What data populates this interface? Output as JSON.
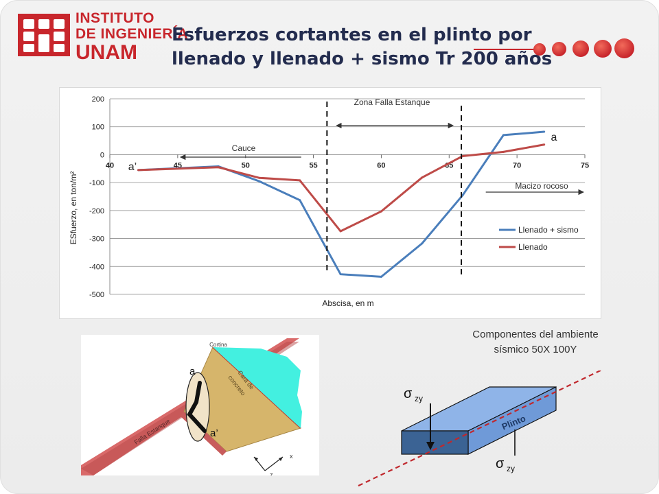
{
  "header": {
    "logo_lines": [
      "INSTITUTO",
      "DE INGENIERÍA",
      "UNAM"
    ],
    "title_line1": "Esfuerzos cortantes en el plinto por",
    "title_line2": "llenado y llenado + sismo Tr 200 años",
    "accent_color": "#c8262c",
    "title_color": "#232c4e"
  },
  "chart_data": {
    "type": "line",
    "title": "",
    "xlabel": "Abscisa, en m",
    "ylabel": "ESfuerzo, en ton/m²",
    "xlim": [
      40,
      75
    ],
    "ylim": [
      -500,
      200
    ],
    "xticks": [
      40,
      45,
      50,
      55,
      60,
      65,
      70,
      75
    ],
    "yticks": [
      200,
      100,
      0,
      -100,
      -200,
      -300,
      -400,
      -500
    ],
    "grid": true,
    "legend_position": "right",
    "series": [
      {
        "name": "Llenado + sismo",
        "color": "#4a7ebb",
        "x": [
          42.1,
          48,
          51,
          54,
          57,
          60,
          63,
          66,
          69,
          72
        ],
        "y": [
          -55,
          -42,
          -95,
          -163,
          -428,
          -437,
          -318,
          -145,
          70,
          82
        ]
      },
      {
        "name": "Llenado",
        "color": "#be4b48",
        "x": [
          42.1,
          48,
          51,
          54,
          57,
          60,
          63,
          66,
          69,
          72
        ],
        "y": [
          -55,
          -45,
          -83,
          -92,
          -274,
          -203,
          -82,
          -5,
          10,
          36
        ]
      }
    ],
    "annotations": {
      "zona_falla": "Zona Falla Estanque",
      "cauce": "Cauce",
      "macizo": "Macizo rocoso",
      "point_a": "a",
      "point_a_prime": "a’"
    }
  },
  "diagram": {
    "cortina": "Cortina",
    "cara_concreto_line1": "Cara de",
    "cara_concreto_line2": "concreto",
    "falla": "Falla Estanque",
    "point_a": "a",
    "point_a_prime": "a’",
    "axis_x": "x",
    "axis_z": "z"
  },
  "seismic": {
    "caption_line1": "Componentes del ambiente",
    "caption_line2": "sísmico 50X 100Y",
    "plinto_label": "Plinto",
    "sigma": "σ",
    "sigma_sub": "zy"
  }
}
